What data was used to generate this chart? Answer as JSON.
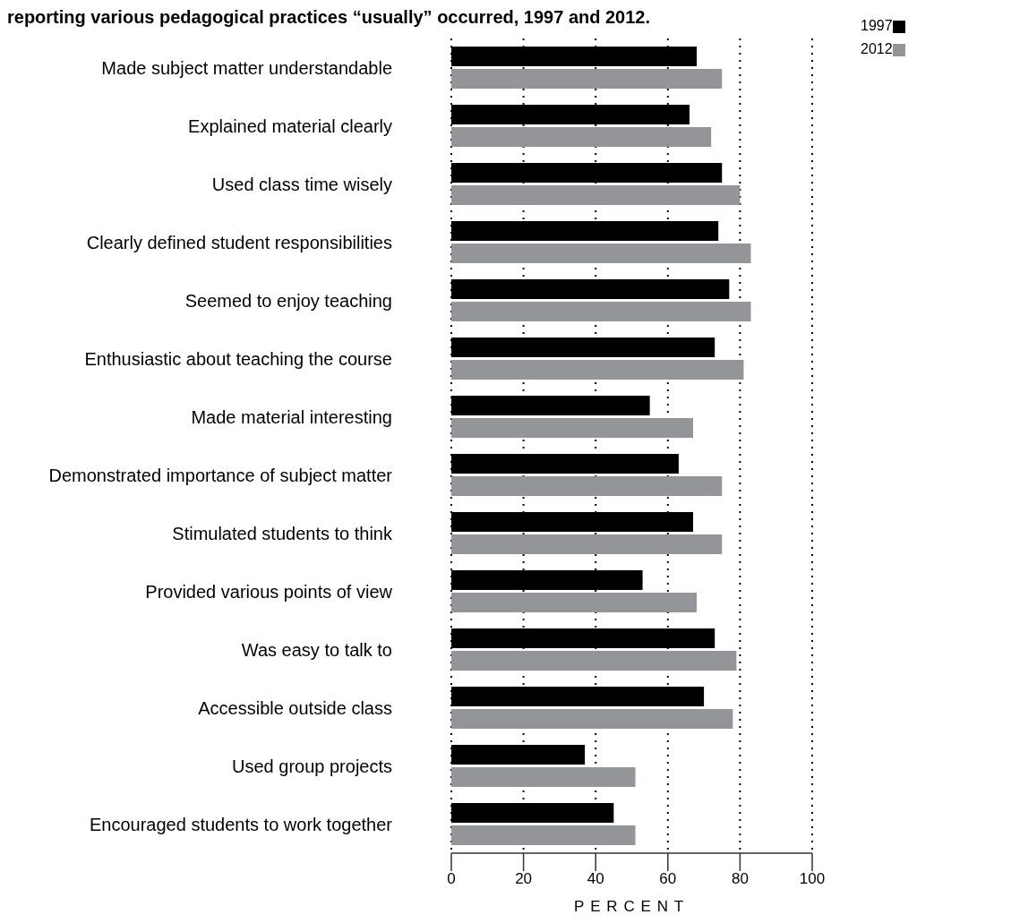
{
  "chart_data": {
    "type": "bar",
    "orientation": "horizontal",
    "title": "reporting various pedagogical practices “usually” occurred, 1997 and 2012.",
    "xlabel": "PERCENT",
    "categories": [
      "Made subject matter understandable",
      "Explained material clearly",
      "Used class time wisely",
      "Clearly defined student responsibilities",
      "Seemed to enjoy teaching",
      "Enthusiastic about teaching the course",
      "Made material interesting",
      "Demonstrated importance of subject matter",
      "Stimulated students to think",
      "Provided various points of view",
      "Was easy to talk to",
      "Accessible outside class",
      "Used group projects",
      "Encouraged students to work together"
    ],
    "series": [
      {
        "name": "1997",
        "color": "#000000",
        "values": [
          68,
          66,
          75,
          74,
          77,
          73,
          55,
          63,
          67,
          53,
          73,
          70,
          37,
          45
        ]
      },
      {
        "name": "2012",
        "color": "#939598",
        "values": [
          75,
          72,
          80,
          83,
          83,
          81,
          67,
          75,
          75,
          68,
          79,
          78,
          51,
          51
        ]
      }
    ],
    "xlim": [
      0,
      100
    ],
    "xticks": [
      0,
      20,
      40,
      60,
      80,
      100
    ],
    "grid": "x",
    "legend": "top right"
  }
}
